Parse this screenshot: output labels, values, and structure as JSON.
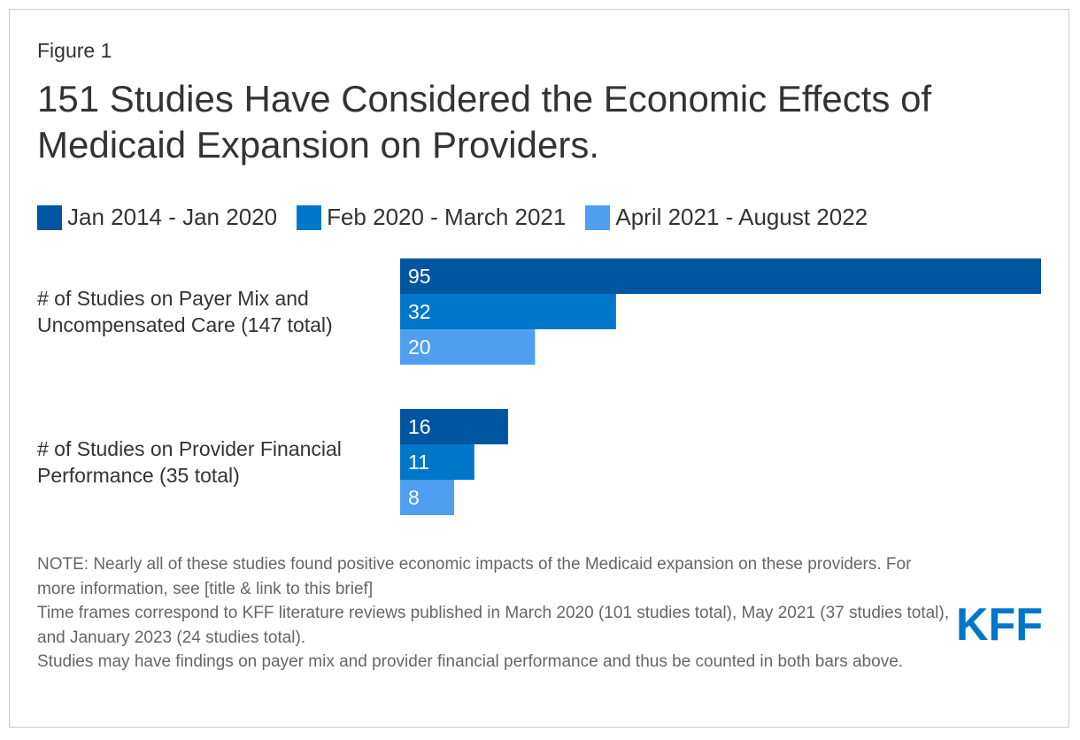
{
  "figure_label": "Figure 1",
  "title": "151 Studies Have Considered the Economic Effects of Medicaid Expansion on Providers.",
  "colors": {
    "series1": "#0055a0",
    "series2": "#0077c8",
    "series3": "#4f9ef0"
  },
  "chart_data": {
    "type": "bar",
    "orientation": "horizontal",
    "categories": [
      "# of Studies on Payer Mix and Uncompensated Care (147 total)",
      "# of Studies on Provider Financial Performance (35 total)"
    ],
    "series": [
      {
        "name": "Jan 2014 - Jan 2020",
        "values": [
          95,
          16
        ]
      },
      {
        "name": "Feb 2020 - March 2021",
        "values": [
          32,
          11
        ]
      },
      {
        "name": "April 2021 - August 2022",
        "values": [
          20,
          8
        ]
      }
    ],
    "xlim": [
      0,
      95
    ],
    "grid": false,
    "legend": "top-left",
    "data_labels": true
  },
  "notes": [
    "NOTE: Nearly all of these studies found positive economic impacts of the Medicaid expansion on these providers. For more information, see [title & link to this brief]",
    "Time frames correspond to KFF literature reviews published in March 2020 (101 studies total), May 2021 (37 studies total), and January 2023 (24 studies total).",
    "Studies may have findings on payer mix and provider financial performance and thus be counted in both bars above."
  ],
  "logo": "KFF"
}
